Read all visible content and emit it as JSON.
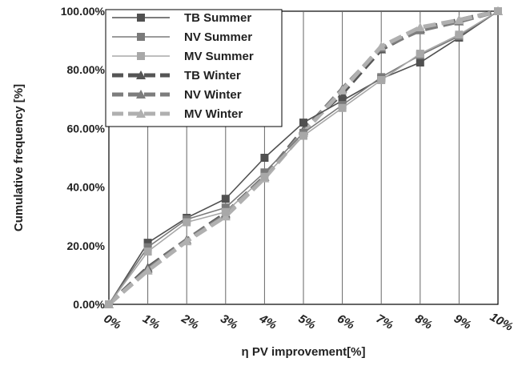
{
  "chart_data": {
    "type": "line",
    "xlabel": "η PV improvement[%]",
    "ylabel": "Cumulative frequency [%]",
    "x": [
      "0%",
      "1%",
      "2%",
      "3%",
      "4%",
      "5%",
      "6%",
      "7%",
      "8%",
      "9%",
      "10%"
    ],
    "y_ticks": [
      "0.00%",
      "20.00%",
      "40.00%",
      "60.00%",
      "80.00%",
      "100.00%"
    ],
    "ylim": [
      0,
      100
    ],
    "grid": "vertical",
    "legend_position": "top-left",
    "series": [
      {
        "name": "TB Summer",
        "marker": "square",
        "dashed": false,
        "color": "#505050",
        "values": [
          0,
          21,
          29.5,
          36,
          50,
          62,
          69.5,
          77,
          82.5,
          91,
          100
        ]
      },
      {
        "name": "NV Summer",
        "marker": "square",
        "dashed": false,
        "color": "#7a7a7a",
        "values": [
          0,
          19.5,
          29,
          33,
          45,
          58.5,
          68,
          77.5,
          85,
          91.5,
          100
        ]
      },
      {
        "name": "MV Summer",
        "marker": "square",
        "dashed": false,
        "color": "#a8a8a8",
        "values": [
          0,
          18,
          28,
          31.5,
          43.5,
          57.5,
          67,
          76.5,
          85.5,
          92,
          100
        ]
      },
      {
        "name": "TB Winter",
        "marker": "triangle",
        "dashed": true,
        "color": "#555555",
        "values": [
          0,
          12.5,
          22,
          31,
          43.5,
          59.5,
          72,
          87,
          94,
          97,
          100
        ]
      },
      {
        "name": "NV Winter",
        "marker": "triangle",
        "dashed": true,
        "color": "#7d7d7d",
        "values": [
          0,
          12,
          22,
          30.5,
          43.5,
          59,
          73.5,
          87.5,
          93.5,
          96.5,
          100
        ]
      },
      {
        "name": "MV Winter",
        "marker": "triangle",
        "dashed": true,
        "color": "#b0b0b0",
        "values": [
          0,
          11.5,
          21.5,
          30,
          43,
          58.5,
          73,
          88,
          94.5,
          97,
          100
        ]
      }
    ]
  }
}
